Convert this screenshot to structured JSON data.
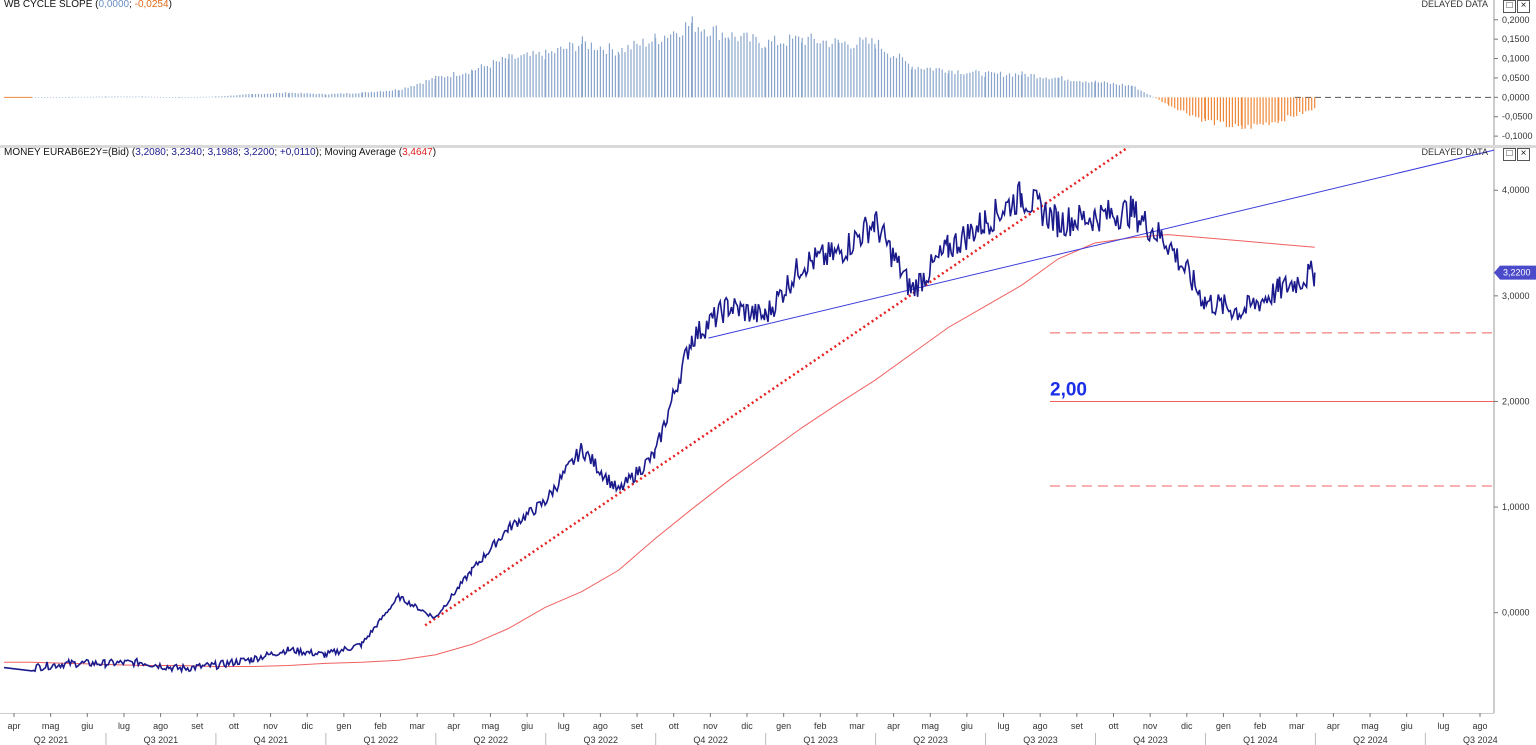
{
  "top_panel": {
    "legend_label": "WB CYCLE SLOPE",
    "legend_open": "(",
    "legend_value1": "0,0000",
    "legend_sep": "; ",
    "legend_value2": "-0,0254",
    "legend_close": ")",
    "delayed": "DELAYED DATA",
    "max_icon": "maximize-icon",
    "close_icon": "close-icon",
    "y_ticks": [
      "0,2000",
      "0,1500",
      "0,1000",
      "0,0500",
      "0,0000",
      "-0,0500",
      "-0,1000"
    ],
    "colors": {
      "positive": "#8aa6cc",
      "negative": "#f0883a"
    }
  },
  "main_panel": {
    "legend_prefix": "MONEY EURAB6E2Y=(Bid) (",
    "ohlc": [
      "3,2080",
      "3,2340",
      "3,1988",
      "3,2200",
      "+0,0110"
    ],
    "legend_mid": "); Moving Average (",
    "ma_value": "3,4647",
    "legend_end": ")",
    "delayed": "DELAYED DATA",
    "y_ticks": [
      "4,0000",
      "3,0000",
      "2,0000",
      "1,0000",
      "0,0000"
    ],
    "last_price_label": "3,2200",
    "annotation": "2,00",
    "colors": {
      "price": "#1a1a8c",
      "ma": "#f06060",
      "trend": "#3b3bdc",
      "dotted": "#e82020",
      "level": "#f06060"
    }
  },
  "time_axis": {
    "months": [
      "apr",
      "mag",
      "giu",
      "lug",
      "ago",
      "set",
      "ott",
      "nov",
      "dic",
      "gen",
      "feb",
      "mar",
      "apr",
      "mag",
      "giu",
      "lug",
      "ago",
      "set",
      "ott",
      "nov",
      "dic",
      "gen",
      "feb",
      "mar",
      "apr",
      "mag",
      "giu",
      "lug",
      "ago",
      "set",
      "ott",
      "nov",
      "dic",
      "gen",
      "feb",
      "mar",
      "apr",
      "mag",
      "giu",
      "lug",
      "ago"
    ],
    "quarters": [
      "Q2 2021",
      "Q3 2021",
      "Q4 2021",
      "Q1 2022",
      "Q2 2022",
      "Q3 2022",
      "Q4 2022",
      "Q1 2023",
      "Q2 2023",
      "Q3 2023",
      "Q4 2023",
      "Q1 2024",
      "Q2 2024",
      "Q3 2024"
    ]
  },
  "chart_data": [
    {
      "type": "bar",
      "title": "WB CYCLE SLOPE",
      "ylim": [
        -0.11,
        0.22
      ],
      "x": [
        "2021-04",
        "2021-05",
        "2021-06",
        "2021-07",
        "2021-08",
        "2021-09",
        "2021-10",
        "2021-11",
        "2021-12",
        "2022-01",
        "2022-02",
        "2022-03",
        "2022-04",
        "2022-05",
        "2022-06",
        "2022-07",
        "2022-08",
        "2022-09",
        "2022-10",
        "2022-11",
        "2022-12",
        "2023-01",
        "2023-02",
        "2023-03",
        "2023-04",
        "2023-05",
        "2023-06",
        "2023-07",
        "2023-08",
        "2023-09",
        "2023-10",
        "2023-11",
        "2023-12",
        "2024-01",
        "2024-02",
        "2024-03"
      ],
      "values": [
        0.0,
        0.001,
        0.002,
        0.002,
        0.0,
        0.002,
        0.008,
        0.012,
        0.008,
        0.012,
        0.02,
        0.05,
        0.07,
        0.1,
        0.11,
        0.14,
        0.12,
        0.15,
        0.19,
        0.16,
        0.14,
        0.15,
        0.14,
        0.14,
        0.08,
        0.07,
        0.06,
        0.06,
        0.05,
        0.04,
        0.03,
        -0.02,
        -0.06,
        -0.08,
        -0.06,
        -0.03
      ]
    },
    {
      "type": "line",
      "title": "MONEY EURAB6E2Y=(Bid)",
      "ylim": [
        -0.95,
        4.4
      ],
      "x": [
        "2021-04",
        "2021-05",
        "2021-06",
        "2021-07",
        "2021-08",
        "2021-09",
        "2021-10",
        "2021-11",
        "2021-12",
        "2022-01",
        "2022-02",
        "2022-03",
        "2022-04",
        "2022-05",
        "2022-06",
        "2022-07",
        "2022-08",
        "2022-09",
        "2022-10",
        "2022-11",
        "2022-12",
        "2023-01",
        "2023-02",
        "2023-03",
        "2023-04",
        "2023-05",
        "2023-06",
        "2023-07",
        "2023-08",
        "2023-09",
        "2023-10",
        "2023-11",
        "2023-12",
        "2024-01",
        "2024-02",
        "2024-03"
      ],
      "series": [
        {
          "name": "EURAB6E2Y=(Bid)",
          "values": [
            -0.52,
            -0.48,
            -0.48,
            -0.47,
            -0.53,
            -0.5,
            -0.44,
            -0.35,
            -0.4,
            -0.3,
            0.15,
            -0.05,
            0.4,
            0.8,
            1.05,
            1.55,
            1.15,
            1.5,
            2.6,
            2.9,
            2.8,
            3.3,
            3.4,
            3.7,
            3.05,
            3.45,
            3.7,
            3.95,
            3.7,
            3.75,
            3.8,
            3.5,
            2.95,
            2.85,
            3.05,
            3.22
          ]
        },
        {
          "name": "Moving Average",
          "values": [
            -0.47,
            -0.48,
            -0.49,
            -0.5,
            -0.5,
            -0.51,
            -0.51,
            -0.5,
            -0.48,
            -0.47,
            -0.45,
            -0.4,
            -0.3,
            -0.15,
            0.05,
            0.2,
            0.4,
            0.7,
            0.98,
            1.25,
            1.5,
            1.75,
            1.98,
            2.2,
            2.45,
            2.7,
            2.9,
            3.1,
            3.35,
            3.5,
            3.55,
            3.58,
            3.55,
            3.52,
            3.49,
            3.46
          ]
        }
      ]
    }
  ]
}
